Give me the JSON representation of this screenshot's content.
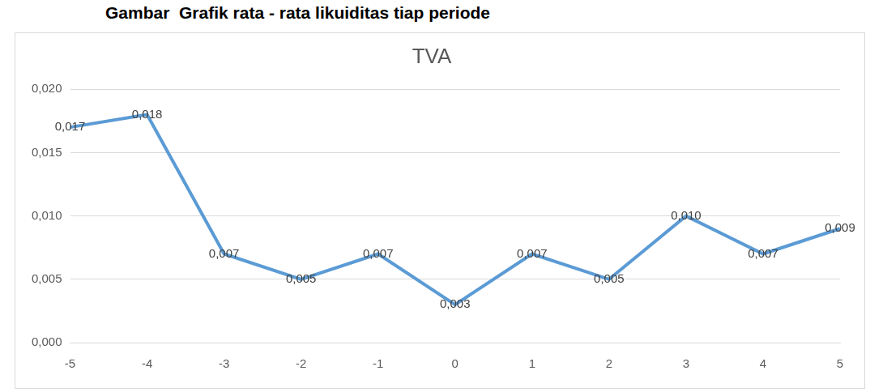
{
  "header": {
    "title": "Gambar  Grafik rata - rata likuiditas tiap periode"
  },
  "chart_data": {
    "type": "line",
    "title": "TVA",
    "categories": [
      "-5",
      "-4",
      "-3",
      "-2",
      "-1",
      "0",
      "1",
      "2",
      "3",
      "4",
      "5"
    ],
    "values": [
      0.017,
      0.018,
      0.007,
      0.005,
      0.007,
      0.003,
      0.007,
      0.005,
      0.01,
      0.007,
      0.009
    ],
    "value_labels": [
      "0,017",
      "0,018",
      "0,007",
      "0,005",
      "0,007",
      "0,003",
      "0,007",
      "0,005",
      "0,010",
      "0,007",
      "0,009"
    ],
    "color": "#5b9bd5",
    "ylim": [
      0,
      0.02
    ],
    "yticks": [
      {
        "value": 0,
        "label": "0,000"
      },
      {
        "value": 0.005,
        "label": "0,005"
      },
      {
        "value": 0.01,
        "label": "0,010"
      },
      {
        "value": 0.015,
        "label": "0,015"
      },
      {
        "value": 0.02,
        "label": "0,020"
      }
    ],
    "grid": true,
    "data_labels": true
  }
}
